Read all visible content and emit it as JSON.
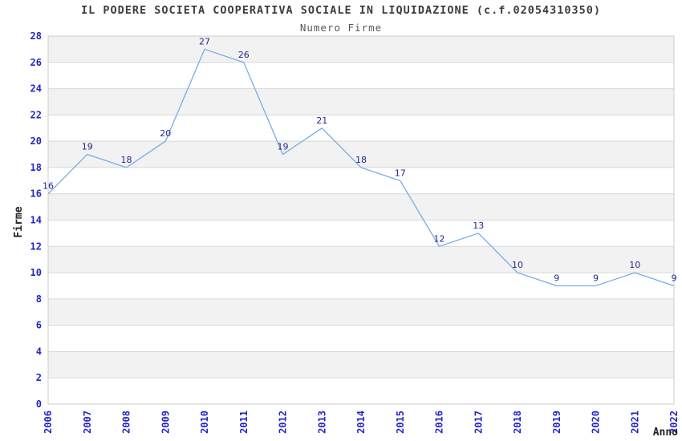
{
  "chart_data": {
    "type": "line",
    "title": "IL PODERE SOCIETA COOPERATIVA SOCIALE IN LIQUIDAZIONE (c.f.02054310350)",
    "subtitle": "Numero Firme",
    "xlabel": "Anno",
    "ylabel": "Firme",
    "categories": [
      "2006",
      "2007",
      "2008",
      "2009",
      "2010",
      "2011",
      "2012",
      "2013",
      "2014",
      "2015",
      "2016",
      "2017",
      "2018",
      "2019",
      "2020",
      "2021",
      "2022"
    ],
    "values": [
      16,
      19,
      18,
      20,
      27,
      26,
      19,
      21,
      18,
      17,
      12,
      13,
      10,
      9,
      9,
      10,
      9
    ],
    "ylim": [
      0,
      28
    ],
    "ytick_step": 2,
    "grid": true,
    "legend": "none",
    "point_labels": true,
    "colors": {
      "line": "#7fb2e5",
      "point_label": "#26268c",
      "tick_label": "#2525c9",
      "title": "#3c3c3c",
      "subtitle": "#585858",
      "axis_label": "#222222",
      "band": "#f2f2f2",
      "grid": "#d8d8d8",
      "border": "#cccccc",
      "background": "#ffffff"
    }
  }
}
